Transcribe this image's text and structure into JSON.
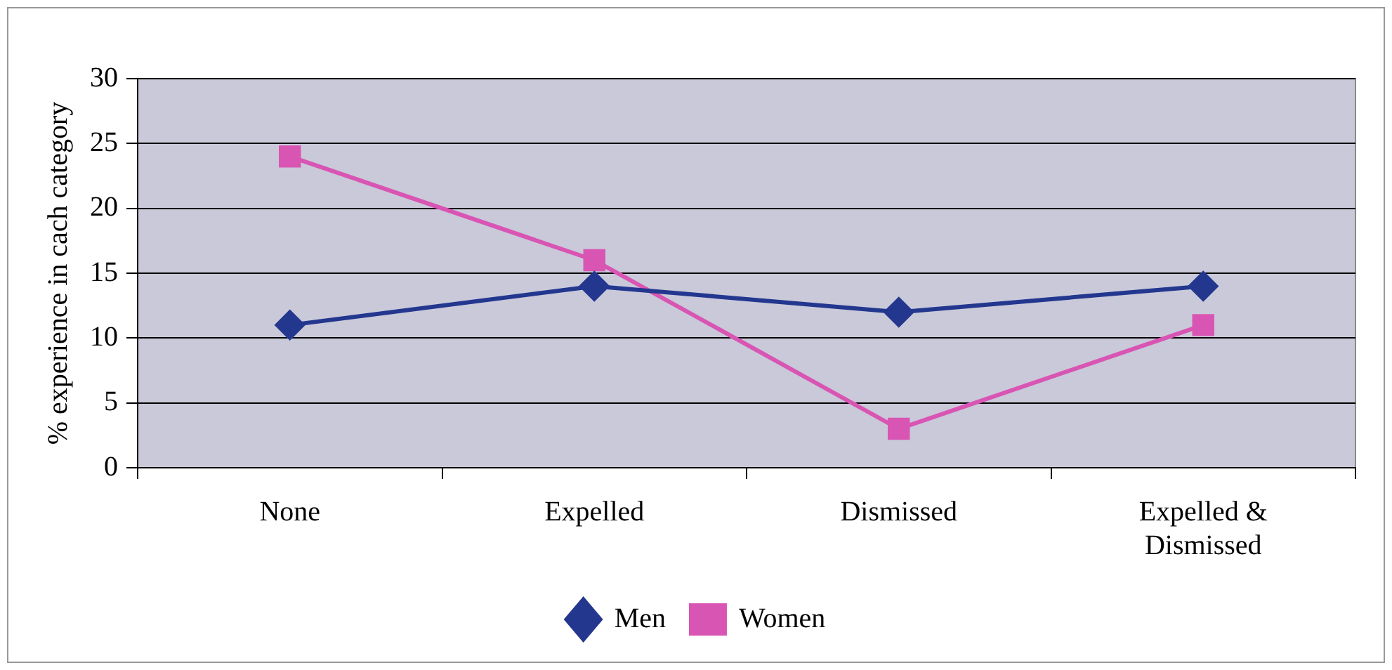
{
  "chart_data": {
    "type": "line",
    "ylabel": "% experience in cach category",
    "categories": [
      "None",
      "Expelled",
      "Dismissed",
      "Expelled & Dismissed"
    ],
    "series": [
      {
        "name": "Men",
        "color": "#23378f",
        "marker": "diamond",
        "values": [
          11,
          14,
          12,
          14
        ]
      },
      {
        "name": "Women",
        "color": "#d955b3",
        "marker": "square",
        "values": [
          24,
          16,
          3,
          11
        ]
      }
    ],
    "ylim": [
      0,
      30
    ],
    "yticks": [
      0,
      5,
      10,
      15,
      20,
      25,
      30
    ],
    "grid": "y",
    "legend": "bottom",
    "line_style": "solid"
  }
}
